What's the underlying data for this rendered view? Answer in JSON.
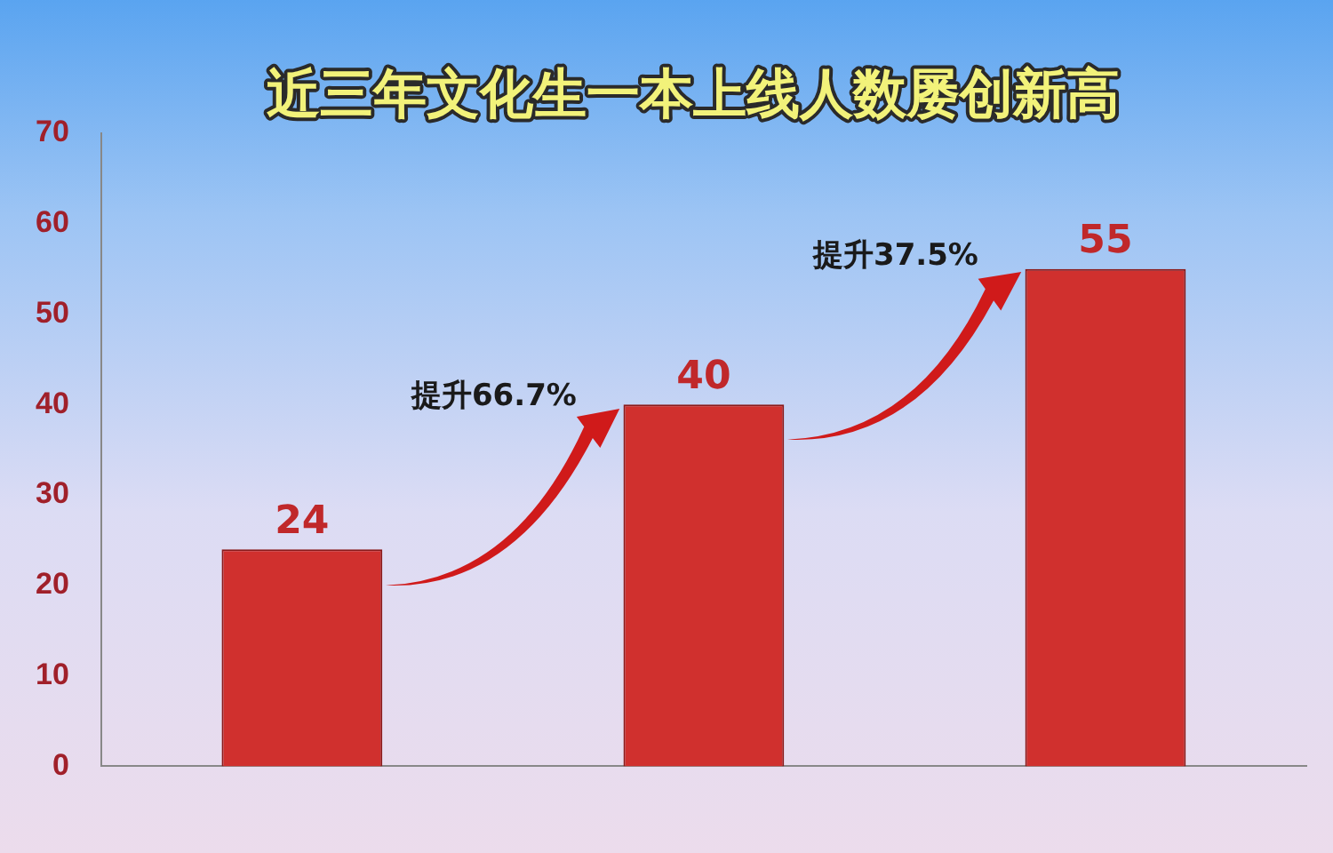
{
  "chart_data": {
    "type": "bar",
    "title": "近三年文化生一本上线人数屡创新高",
    "categories": [
      null,
      null,
      null
    ],
    "values": [
      24,
      40,
      55
    ],
    "color": "#d0302e",
    "ylim": [
      0,
      70
    ],
    "yticks": [
      0,
      10,
      20,
      30,
      40,
      50,
      60,
      70
    ],
    "data_labels": true,
    "annotations": [
      "提升66.7%",
      "提升37.5%"
    ]
  }
}
